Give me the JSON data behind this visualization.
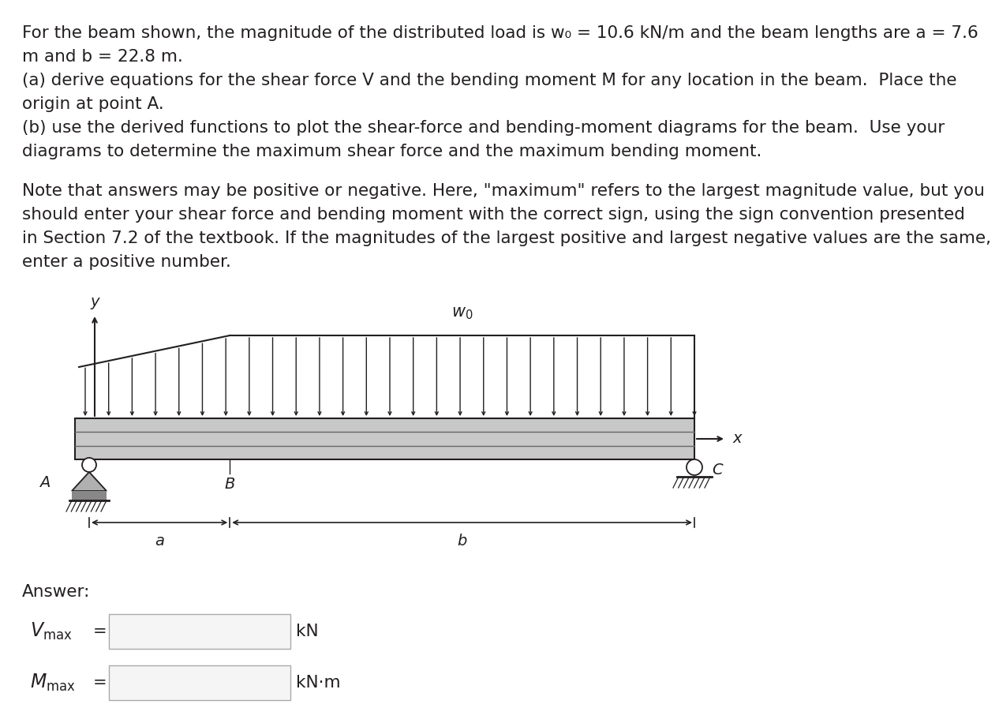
{
  "bg_color": "#ffffff",
  "text_color": "#231f20",
  "beam_color": "#c8c8c8",
  "beam_outline": "#231f20",
  "lines_top": [
    "For the beam shown, the magnitude of the distributed load is w₀ = 10.6 kN/m and the beam lengths are a = 7.6",
    "m and b = 22.8 m.",
    "(a) derive equations for the shear force V and the bending moment M for any location in the beam.  Place the",
    "origin at point A.",
    "(b) use the derived functions to plot the shear-force and bending-moment diagrams for the beam.  Use your",
    "diagrams to determine the maximum shear force and the maximum bending moment."
  ],
  "note_lines": [
    "Note that answers may be positive or negative. Here, \"maximum\" refers to the largest magnitude value, but you",
    "should enter your shear force and bending moment with the correct sign, using the sign convention presented",
    "in Section 7.2 of the textbook. If the magnitudes of the largest positive and largest negative values are the same,",
    "enter a positive number."
  ],
  "body_fontsize": 15.5,
  "label_fontsize": 14,
  "answer_fontsize": 15.5,
  "vmax_unit": "kN",
  "mmax_unit": "kN·m",
  "answer_label": "Answer:"
}
